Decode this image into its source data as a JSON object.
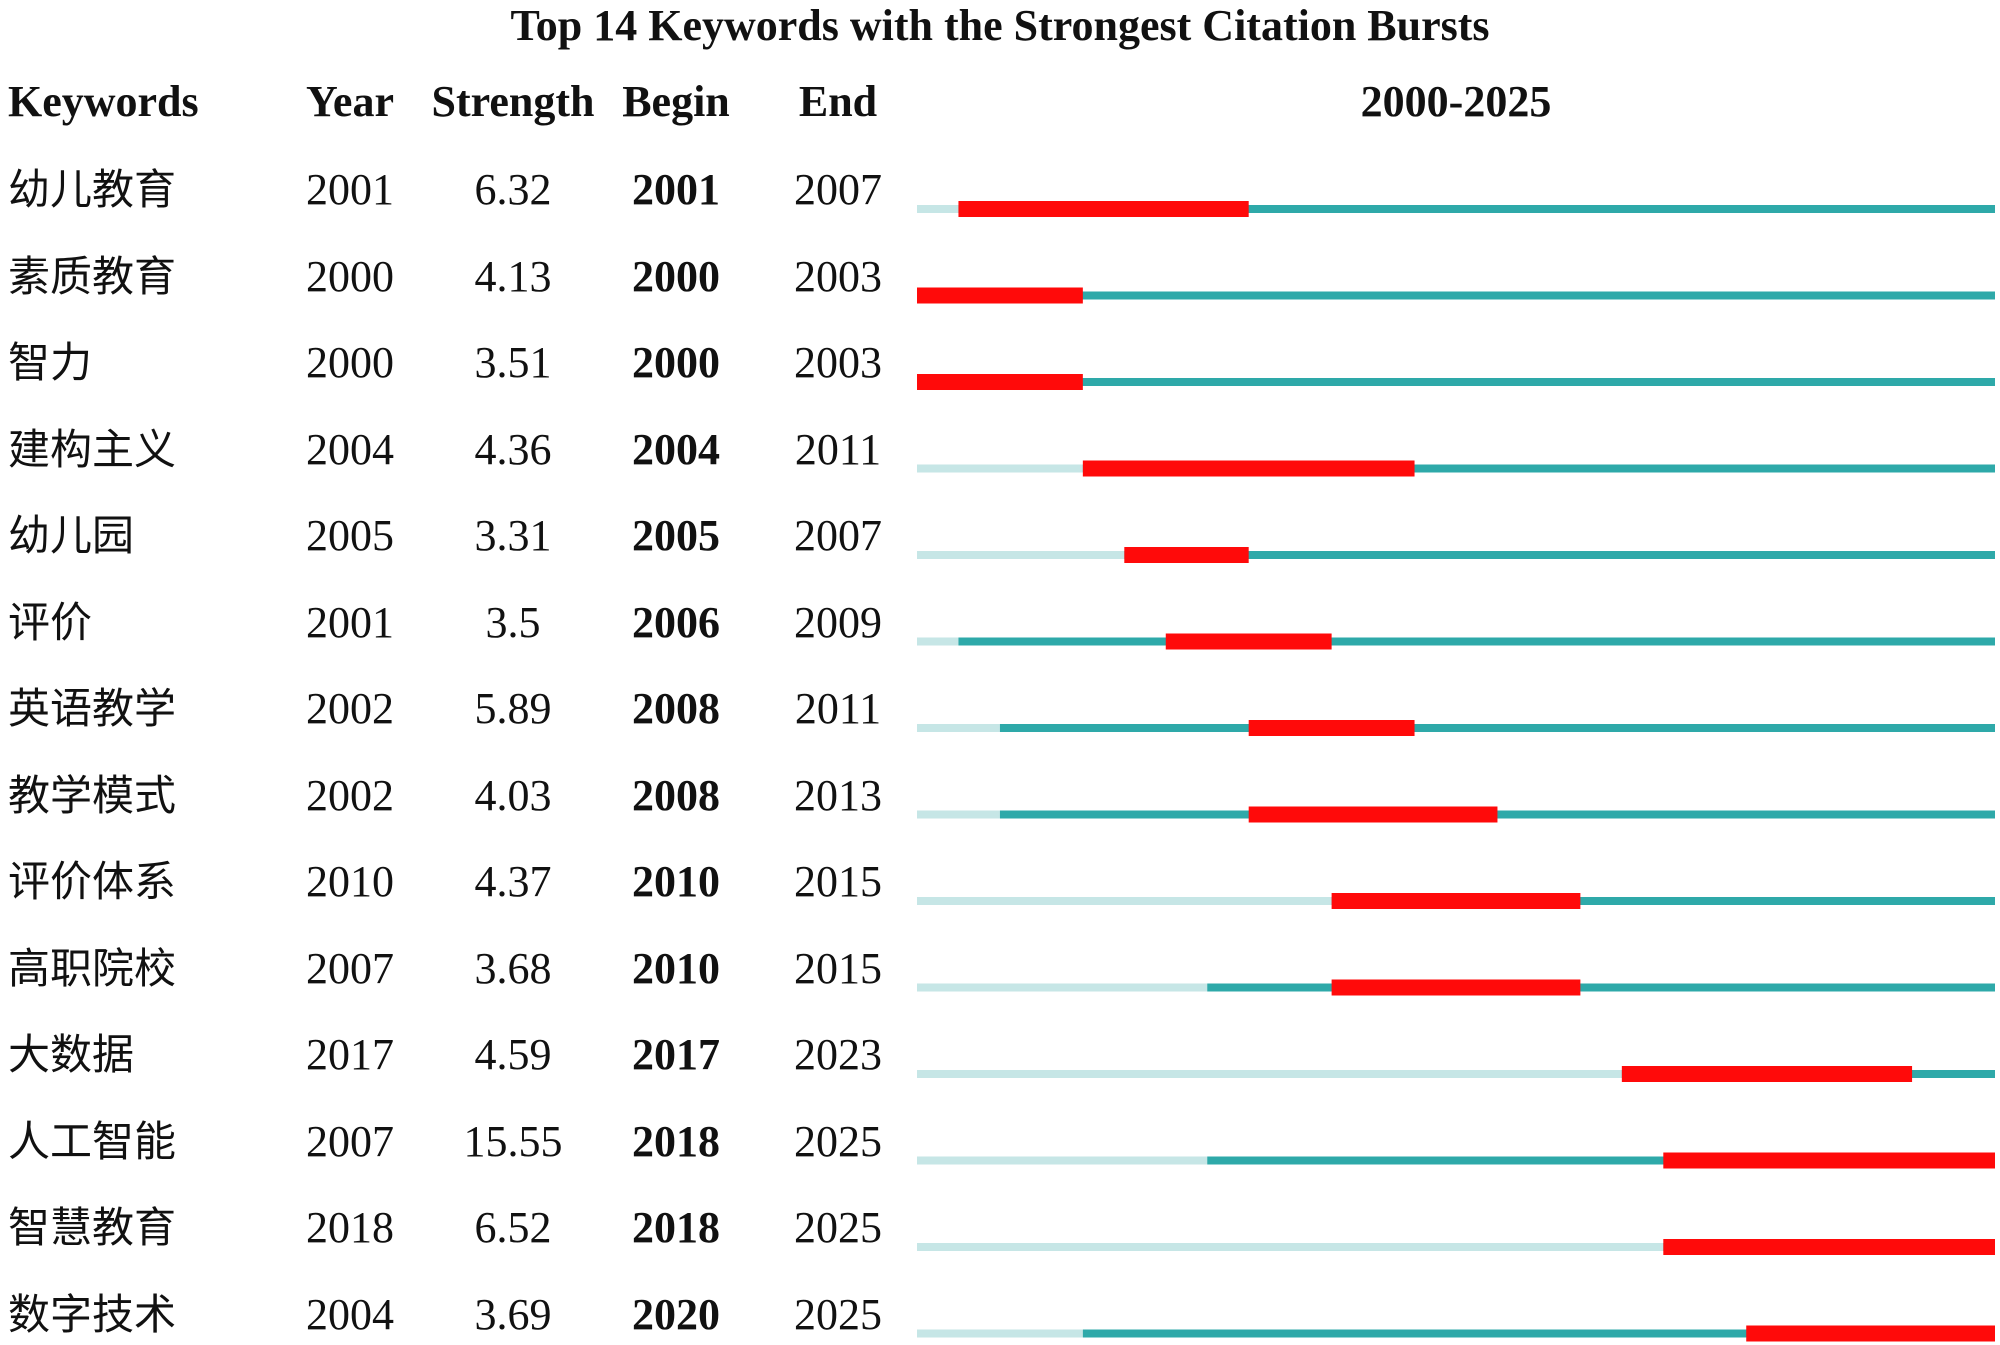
{
  "title": "Top 14 Keywords with the Strongest Citation Bursts",
  "headers": {
    "keywords": "Keywords",
    "year": "Year",
    "strength": "Strength",
    "begin": "Begin",
    "end": "End",
    "range": "2000-2025"
  },
  "colors": {
    "before_year": "#c6e6e6",
    "active": "#2ea9a9",
    "burst": "#ff0a0a"
  },
  "chart_data": {
    "type": "table",
    "title": "Top 14 Keywords with the Strongest Citation Bursts",
    "range_start": 2000,
    "range_end": 2025,
    "rows": [
      {
        "keyword": "幼儿教育",
        "year": "2001",
        "strength": "6.32",
        "begin": "2001",
        "end": "2007"
      },
      {
        "keyword": "素质教育",
        "year": "2000",
        "strength": "4.13",
        "begin": "2000",
        "end": "2003"
      },
      {
        "keyword": "智力",
        "year": "2000",
        "strength": "3.51",
        "begin": "2000",
        "end": "2003"
      },
      {
        "keyword": "建构主义",
        "year": "2004",
        "strength": "4.36",
        "begin": "2004",
        "end": "2011"
      },
      {
        "keyword": "幼儿园",
        "year": "2005",
        "strength": "3.31",
        "begin": "2005",
        "end": "2007"
      },
      {
        "keyword": "评价",
        "year": "2001",
        "strength": "3.5",
        "begin": "2006",
        "end": "2009"
      },
      {
        "keyword": "英语教学",
        "year": "2002",
        "strength": "5.89",
        "begin": "2008",
        "end": "2011"
      },
      {
        "keyword": "教学模式",
        "year": "2002",
        "strength": "4.03",
        "begin": "2008",
        "end": "2013"
      },
      {
        "keyword": "评价体系",
        "year": "2010",
        "strength": "4.37",
        "begin": "2010",
        "end": "2015"
      },
      {
        "keyword": "高职院校",
        "year": "2007",
        "strength": "3.68",
        "begin": "2010",
        "end": "2015"
      },
      {
        "keyword": "大数据",
        "year": "2017",
        "strength": "4.59",
        "begin": "2017",
        "end": "2023"
      },
      {
        "keyword": "人工智能",
        "year": "2007",
        "strength": "15.55",
        "begin": "2018",
        "end": "2025"
      },
      {
        "keyword": "智慧教育",
        "year": "2018",
        "strength": "6.52",
        "begin": "2018",
        "end": "2025"
      },
      {
        "keyword": "数字技术",
        "year": "2004",
        "strength": "3.69",
        "begin": "2020",
        "end": "2025"
      }
    ]
  }
}
